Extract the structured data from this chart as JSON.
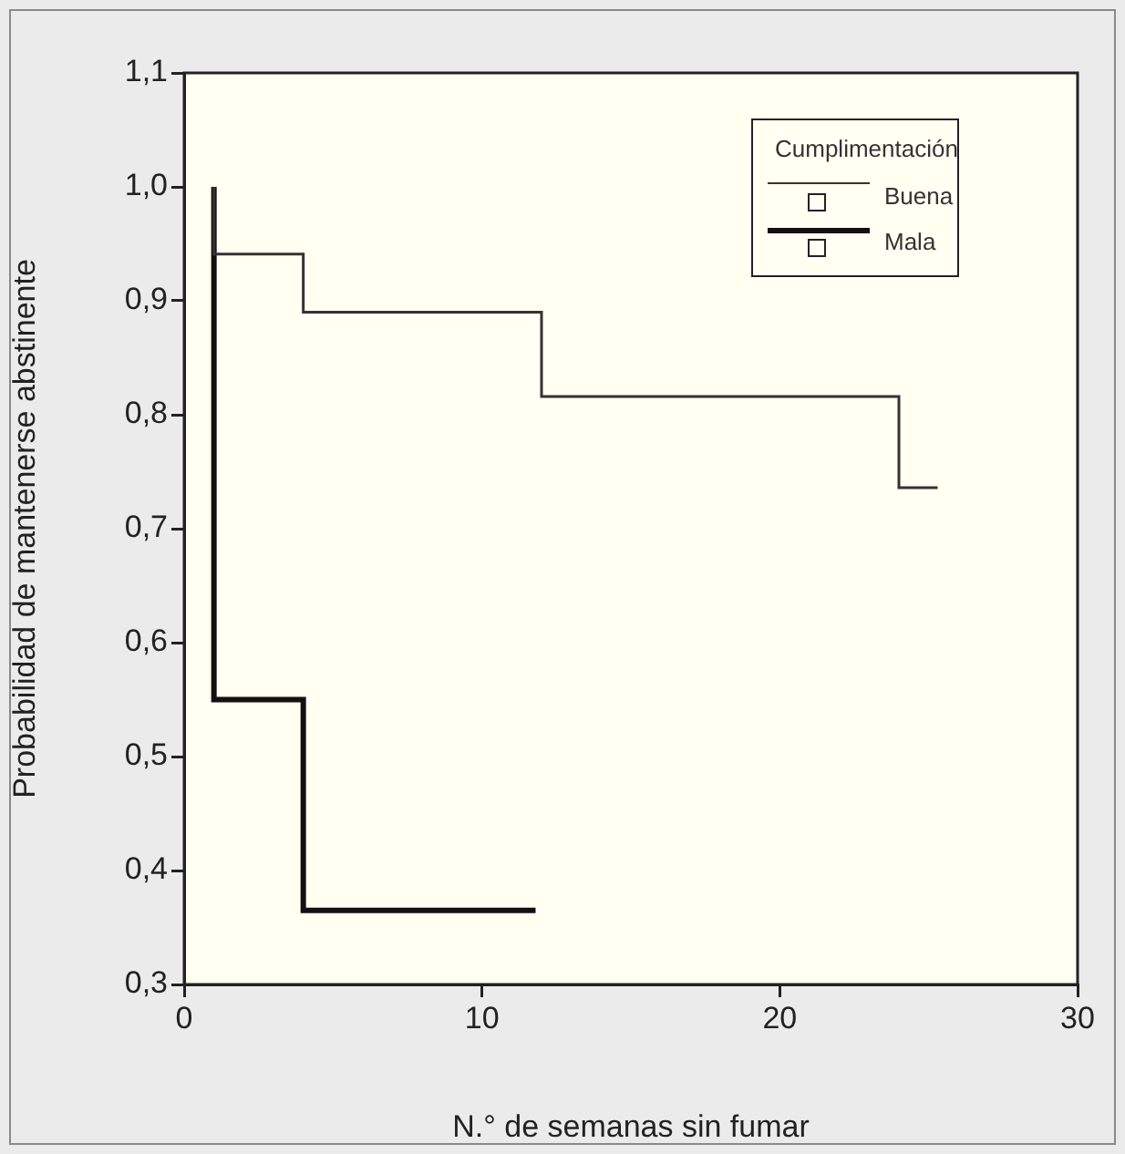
{
  "chart_data": {
    "type": "step",
    "xlabel": "N.° de semanas sin fumar",
    "ylabel": "Probabilidad de mantenerse abstinente",
    "legend_title": "Cumplimentación",
    "xlim": [
      0,
      30
    ],
    "xticks": [
      0,
      10,
      20,
      30
    ],
    "ylim": [
      0.3,
      1.1
    ],
    "yticks": [
      {
        "value": 0.3,
        "label": "0,3"
      },
      {
        "value": 0.4,
        "label": "0,4"
      },
      {
        "value": 0.5,
        "label": "0,5"
      },
      {
        "value": 0.6,
        "label": "0,6"
      },
      {
        "value": 0.7,
        "label": "0,7"
      },
      {
        "value": 0.8,
        "label": "0,8"
      },
      {
        "value": 0.9,
        "label": "0,9"
      },
      {
        "value": 1.0,
        "label": "1,0"
      },
      {
        "value": 1.1,
        "label": "1,1"
      }
    ],
    "grid": false,
    "legend": "top right",
    "marker": "none",
    "line_style": "solid",
    "series": [
      {
        "name": "Buena",
        "color": "#333333",
        "x": [
          1,
          1,
          4,
          12,
          24,
          25.3
        ],
        "values": [
          1.0,
          0.941,
          0.89,
          0.816,
          0.736,
          0.736
        ]
      },
      {
        "name": "Mala",
        "color": "#111111",
        "x": [
          1,
          1,
          4,
          11.8
        ],
        "values": [
          1.0,
          0.55,
          0.365,
          0.365
        ]
      }
    ]
  }
}
